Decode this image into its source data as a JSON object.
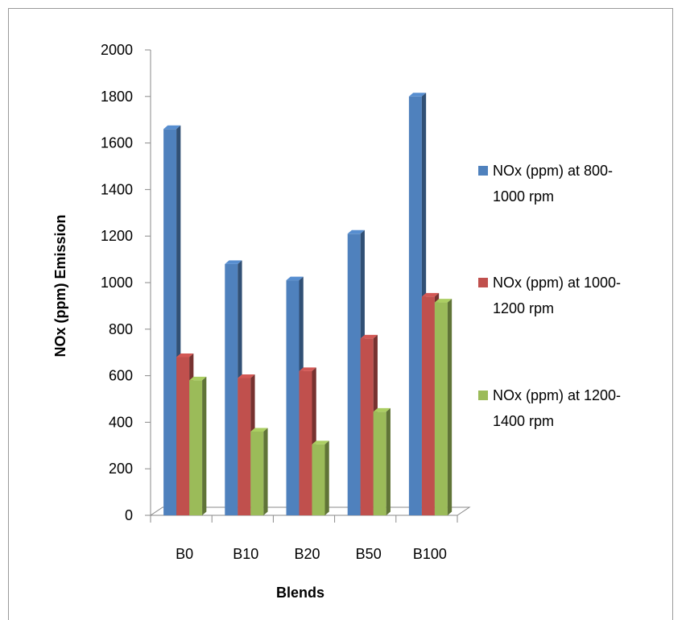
{
  "chart_data": {
    "type": "bar",
    "title": "",
    "xlabel": "Blends",
    "ylabel": "NOx (ppm) Emission",
    "categories": [
      "B0",
      "B10",
      "B20",
      "B50",
      "B100"
    ],
    "ylim": [
      0,
      2000
    ],
    "yticks": [
      0,
      200,
      400,
      600,
      800,
      1000,
      1200,
      1400,
      1600,
      1800,
      2000
    ],
    "grid": false,
    "legend_position": "right",
    "series": [
      {
        "name": "NOx (ppm) at 800-1000 rpm",
        "legend_lines": [
          "NOx (ppm) at 800-",
          "1000 rpm"
        ],
        "color": "#4F81BD",
        "values": [
          1660,
          1080,
          1010,
          1210,
          1800
        ]
      },
      {
        "name": "NOx (ppm) at 1000-1200 rpm",
        "legend_lines": [
          "NOx (ppm) at 1000-",
          "1200 rpm"
        ],
        "color": "#C0504D",
        "values": [
          680,
          590,
          620,
          760,
          940
        ]
      },
      {
        "name": "NOx (ppm) at 1200-1400 rpm",
        "legend_lines": [
          "NOx (ppm) at 1200-",
          "1400 rpm"
        ],
        "color": "#9BBB59",
        "values": [
          580,
          360,
          305,
          445,
          915
        ]
      }
    ]
  }
}
